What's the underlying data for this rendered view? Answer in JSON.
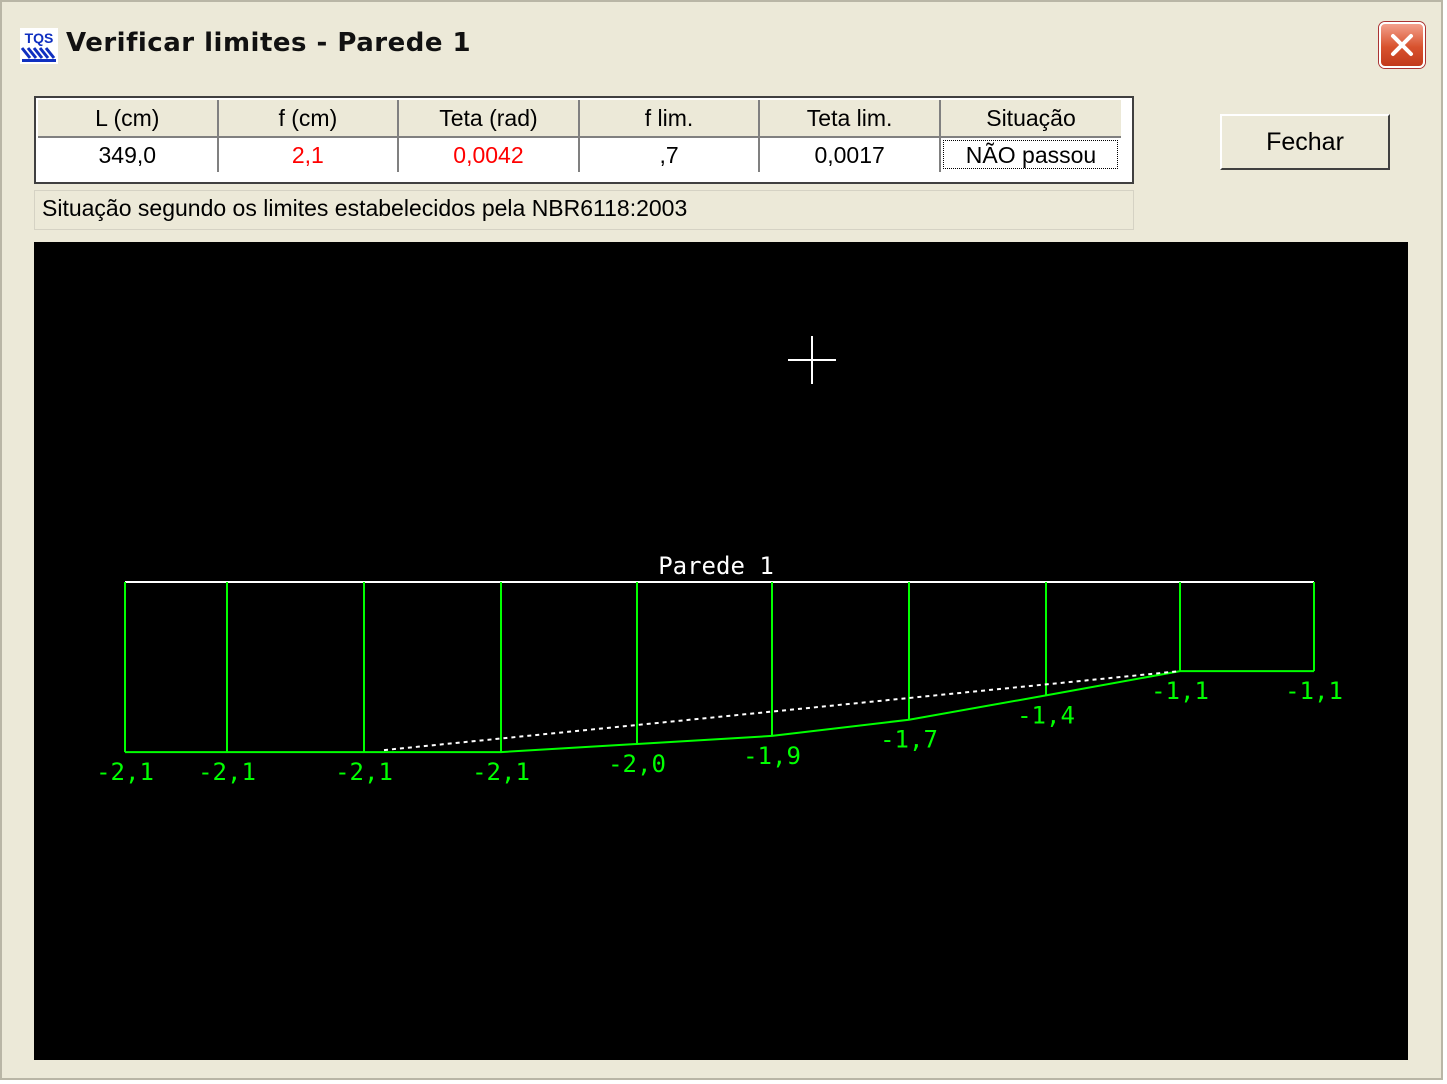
{
  "window": {
    "title": "Verificar limites - Parede 1",
    "app_icon": "tqs-icon",
    "close_icon": "close-icon"
  },
  "table": {
    "headers": [
      "L (cm)",
      "f (cm)",
      "Teta (rad)",
      "f lim.",
      "Teta lim.",
      "Situação"
    ],
    "values": [
      "349,0",
      "2,1",
      "0,0042",
      ",7",
      "0,0017",
      "NÃO passou"
    ],
    "value_colors": [
      "#000000",
      "#ff0000",
      "#ff0000",
      "#000000",
      "#000000",
      "#000000"
    ]
  },
  "status_text": "Situação segundo os limites estabelecidos pela NBR6118:2003",
  "buttons": {
    "close_label": "Fechar"
  },
  "diagram": {
    "title": "Parede 1",
    "background": "#000000",
    "wall_color": "#ffffff",
    "deflection_color": "#00ff00",
    "baseline_color": "#ffffff",
    "cursor_icon": "crosshair-icon",
    "deflection_labels": [
      "-2,1",
      "-2,1",
      "-2,1",
      "-2,1",
      "-2,0",
      "-1,9",
      "-1,7",
      "-1,4",
      "-1,1",
      "-1,1"
    ],
    "deflection_values": [
      -2.1,
      -2.1,
      -2.1,
      -2.1,
      -2.0,
      -1.9,
      -1.7,
      -1.4,
      -1.1,
      -1.1
    ]
  }
}
